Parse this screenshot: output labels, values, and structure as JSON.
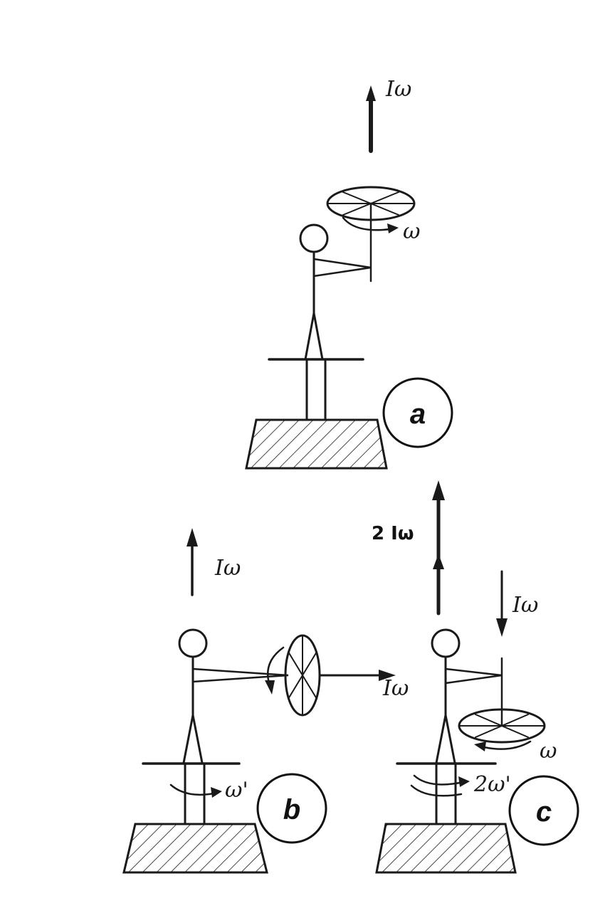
{
  "panels": {
    "a": {
      "badge": "a",
      "momentum_label": "Iω",
      "omega_label": "ω"
    },
    "b": {
      "badge": "b",
      "momentum_up_label": "Iω",
      "momentum_horizontal_label": "Iω",
      "omega_prime_label": "ω'"
    },
    "c": {
      "badge": "c",
      "momentum_total_label": "2 Iω",
      "momentum_down_label": "Iω",
      "omega_label": "ω",
      "omega_prime_label": "2ω'"
    }
  }
}
